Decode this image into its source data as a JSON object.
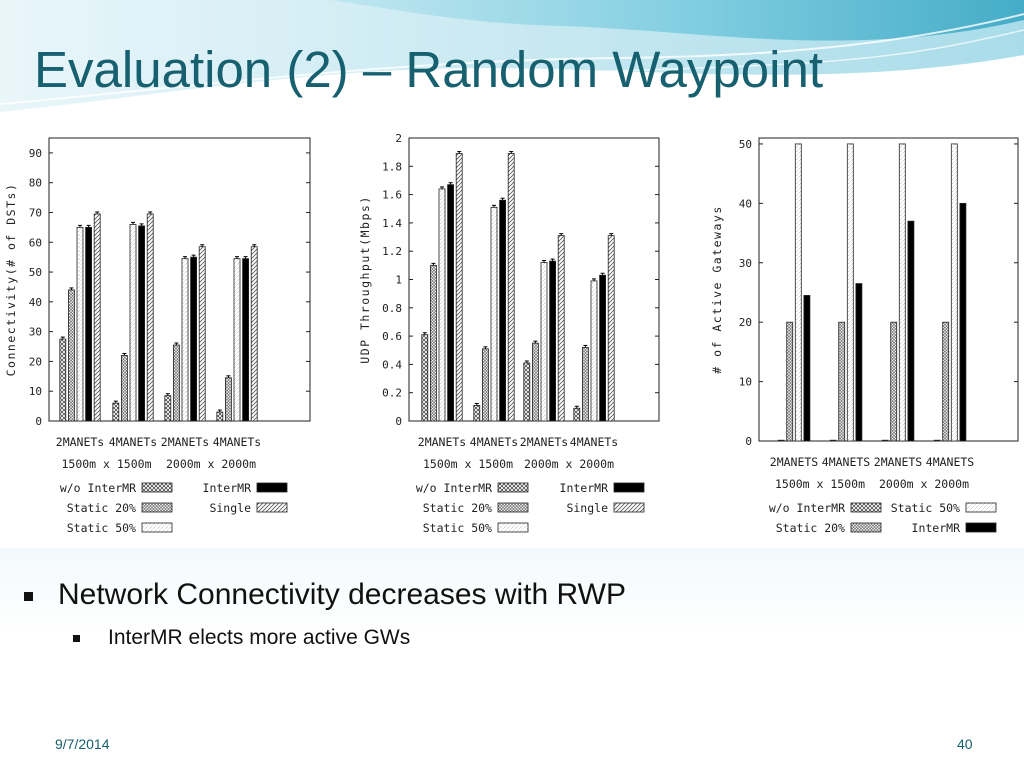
{
  "slide": {
    "title": "Evaluation (2) – Random Waypoint",
    "bullets": [
      {
        "text": "Network Connectivity decreases with RWP",
        "level": 1
      },
      {
        "text": "InterMR elects more active GWs",
        "level": 2
      }
    ],
    "date": "9/7/2014",
    "page_number": "40"
  },
  "colors": {
    "title": "#17606f",
    "accent": "#4fb3cc",
    "footer": "#17606f"
  },
  "chart_data": [
    {
      "type": "bar",
      "ylabel": "Connectivity(# of DSTs)",
      "ylim": [
        0,
        95
      ],
      "yticks": [
        "0",
        "10",
        "20",
        "30",
        "40",
        "50",
        "60",
        "70",
        "80",
        "90"
      ],
      "ytick_values": [
        0,
        10,
        20,
        30,
        40,
        50,
        60,
        70,
        80,
        90
      ],
      "categories": [
        "2MANETs",
        "4MANETs",
        "2MANETs",
        "4MANETs"
      ],
      "group_labels": [
        "1500m x 1500m",
        "2000m x 2000m"
      ],
      "series": [
        {
          "name": "w/o InterMR",
          "values": [
            27.5,
            6,
            8.5,
            3
          ]
        },
        {
          "name": "Static 20%",
          "values": [
            44,
            22,
            25.5,
            14.5
          ]
        },
        {
          "name": "Static 50%",
          "values": [
            65,
            66,
            54.5,
            54.5
          ]
        },
        {
          "name": "InterMR",
          "values": [
            65,
            65.5,
            55,
            54.5
          ]
        },
        {
          "name": "Single",
          "values": [
            69.5,
            69.5,
            58.5,
            58.5
          ]
        }
      ],
      "legend_position": "bottom"
    },
    {
      "type": "bar",
      "ylabel": "UDP Throughput(Mbps)",
      "ylim": [
        0,
        2
      ],
      "yticks": [
        "0",
        "0.2",
        "0.4",
        "0.6",
        "0.8",
        "1",
        "1.2",
        "1.4",
        "1.6",
        "1.8",
        "2"
      ],
      "ytick_values": [
        0,
        0.2,
        0.4,
        0.6,
        0.8,
        1,
        1.2,
        1.4,
        1.6,
        1.8,
        2
      ],
      "categories": [
        "2MANETs",
        "4MANETs",
        "2MANETs",
        "4MANETs"
      ],
      "group_labels": [
        "1500m x 1500m",
        "2000m x 2000m"
      ],
      "series": [
        {
          "name": "w/o InterMR",
          "values": [
            0.61,
            0.11,
            0.41,
            0.09
          ]
        },
        {
          "name": "Static 20%",
          "values": [
            1.1,
            0.51,
            0.55,
            0.52
          ]
        },
        {
          "name": "Static 50%",
          "values": [
            1.64,
            1.51,
            1.12,
            0.99
          ]
        },
        {
          "name": "InterMR",
          "values": [
            1.67,
            1.56,
            1.13,
            1.03
          ]
        },
        {
          "name": "Single",
          "values": [
            1.89,
            1.89,
            1.31,
            1.31
          ]
        }
      ],
      "legend_position": "bottom"
    },
    {
      "type": "bar",
      "ylabel": "# of Active Gateways",
      "ylim": [
        0,
        51
      ],
      "yticks": [
        "0",
        "10",
        "20",
        "30",
        "40",
        "50"
      ],
      "ytick_values": [
        0,
        10,
        20,
        30,
        40,
        50
      ],
      "categories": [
        "2MANETS",
        "4MANETS",
        "2MANETS",
        "4MANETS"
      ],
      "group_labels": [
        "1500m x 1500m",
        "2000m x 2000m"
      ],
      "series": [
        {
          "name": "w/o InterMR",
          "values": [
            0,
            0,
            0,
            0
          ]
        },
        {
          "name": "Static 20%",
          "values": [
            20,
            20,
            20,
            20
          ]
        },
        {
          "name": "Static 50%",
          "values": [
            50,
            50,
            50,
            50
          ]
        },
        {
          "name": "InterMR",
          "values": [
            24.5,
            26.5,
            37,
            40
          ]
        }
      ],
      "legend_position": "bottom"
    }
  ]
}
